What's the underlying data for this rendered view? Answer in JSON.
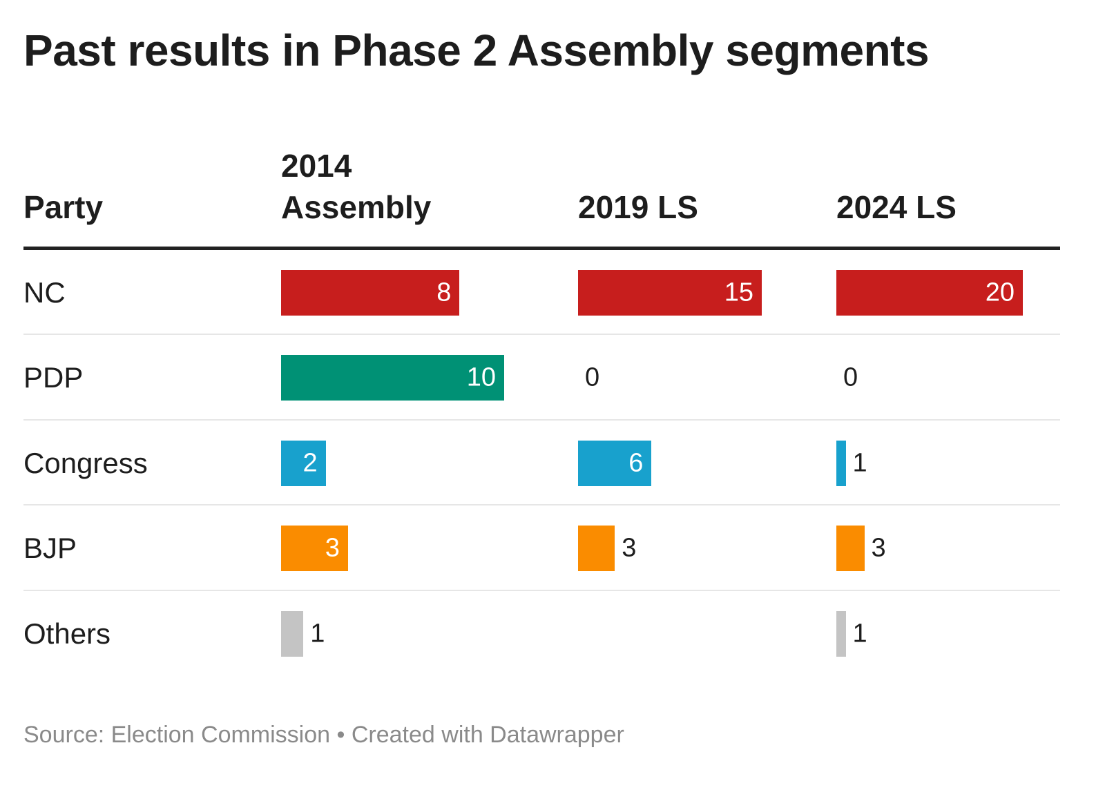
{
  "chart_data": {
    "type": "table",
    "title": "Past results in Phase 2 Assembly segments",
    "columns": [
      "Party",
      "2014 Assembly",
      "2019 LS",
      "2024 LS"
    ],
    "header_lines": [
      [
        "Party"
      ],
      [
        "2014",
        "Assembly"
      ],
      [
        "2019 LS"
      ],
      [
        "2024 LS"
      ]
    ],
    "rows": [
      {
        "party": "NC",
        "values": [
          8,
          15,
          20
        ],
        "color": "#c71e1d"
      },
      {
        "party": "PDP",
        "values": [
          10,
          0,
          0
        ],
        "color": "#009175"
      },
      {
        "party": "Congress",
        "values": [
          2,
          6,
          1
        ],
        "color": "#18a1cd"
      },
      {
        "party": "BJP",
        "values": [
          3,
          3,
          3
        ],
        "color": "#fa8c00"
      },
      {
        "party": "Others",
        "values": [
          1,
          null,
          1
        ],
        "color": "#c4c4c4"
      }
    ],
    "footer": "Source: Election Commission • Created with Datawrapper"
  }
}
